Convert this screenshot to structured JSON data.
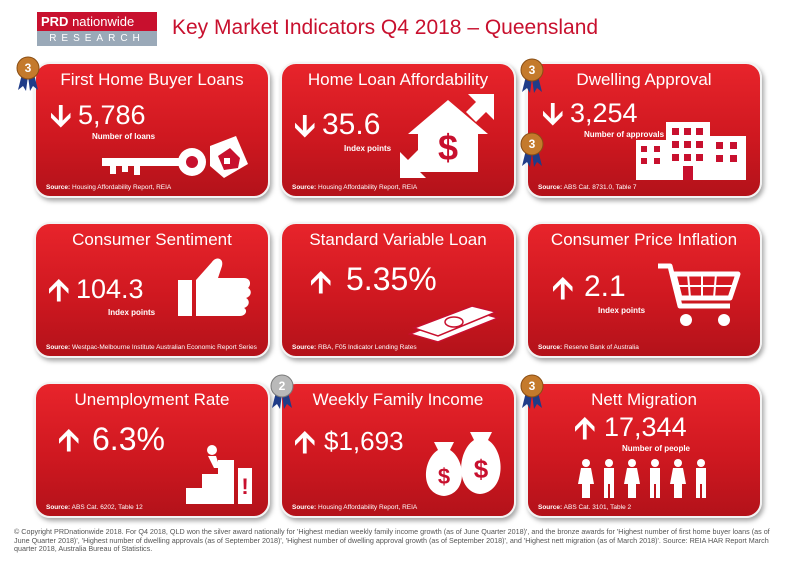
{
  "logo": {
    "brand_bold": "PRD",
    "brand_rest": "nationwide",
    "sub": "RESEARCH"
  },
  "title": "Key Market Indicators Q4 2018 – Queensland",
  "source_prefix": "Source:",
  "cards": [
    {
      "title": "First Home Buyer Loans",
      "direction": "down",
      "arrow": "🡫",
      "value": "5,786",
      "sublabel": "Number of loans",
      "source": "Housing Affordability Report, REIA",
      "medal": "3",
      "icon": "key-house-icon"
    },
    {
      "title": "Home Loan Affordability",
      "direction": "down",
      "arrow": "🡫",
      "value": "35.6",
      "sublabel": "Index points",
      "source": "Housing Affordability Report, REIA",
      "medal": "",
      "icon": "dollar-house-icon"
    },
    {
      "title": "Dwelling Approval",
      "direction": "down",
      "arrow": "🡫",
      "value": "3,254",
      "sublabel": "Number of approvals",
      "source": "ABS Cat. 8731.0, Table 7",
      "medal": "3",
      "medal2": "3",
      "icon": "buildings-icon"
    },
    {
      "title": "Consumer Sentiment",
      "direction": "up",
      "arrow": "🡩",
      "value": "104.3",
      "sublabel": "Index points",
      "source": "Westpac-Melbourne Institute Australian Economic Report Series",
      "medal": "",
      "icon": "thumbs-up-icon"
    },
    {
      "title": "Standard Variable Loan",
      "direction": "up",
      "arrow": "🡩",
      "value": "5.35%",
      "sublabel": "",
      "source": "RBA, F05 Indicator Lending Rates",
      "medal": "",
      "icon": "money-icon"
    },
    {
      "title": "Consumer Price Inflation",
      "direction": "up",
      "arrow": "🡩",
      "value": "2.1",
      "sublabel": "Index points",
      "source": "Reserve Bank of Australia",
      "medal": "",
      "icon": "shopping-cart-icon"
    },
    {
      "title": "Unemployment Rate",
      "direction": "up",
      "arrow": "🡩",
      "value": "6.3%",
      "sublabel": "",
      "source": "ABS Cat. 6202, Table 12",
      "medal": "",
      "icon": "stairs-person-icon"
    },
    {
      "title": "Weekly Family Income",
      "direction": "up",
      "arrow": "🡩",
      "value": "$1,693",
      "sublabel": "",
      "source": "Housing Affordability Report, REIA",
      "medal": "2",
      "icon": "money-bags-icon"
    },
    {
      "title": "Nett Migration",
      "direction": "up",
      "arrow": "🡩",
      "value": "17,344",
      "sublabel": "Number of people",
      "source": "ABS Cat. 3101, Table 2",
      "medal": "3",
      "icon": "people-icon"
    }
  ],
  "colors": {
    "red": "#c8102e",
    "bronze": "#c47a2c",
    "silver": "#9c9c9c",
    "ribbon": "#1f3c88"
  },
  "footer": "© Copyright PRDnationwide 2018. For Q4 2018, QLD won the silver award nationally for 'Highest median weekly family income growth (as of June Quarter 2018)', and the bronze awards for 'Highest number of first home buyer loans (as of June Quarter 2018)', 'Highest number of dwelling approvals (as of September 2018)', 'Highest number of dwelling approval growth (as of September 2018)', and 'Highest nett migration (as of March 2018)'.   Source: REIA HAR Report March quarter 2018, Australia Bureau of Statistics."
}
